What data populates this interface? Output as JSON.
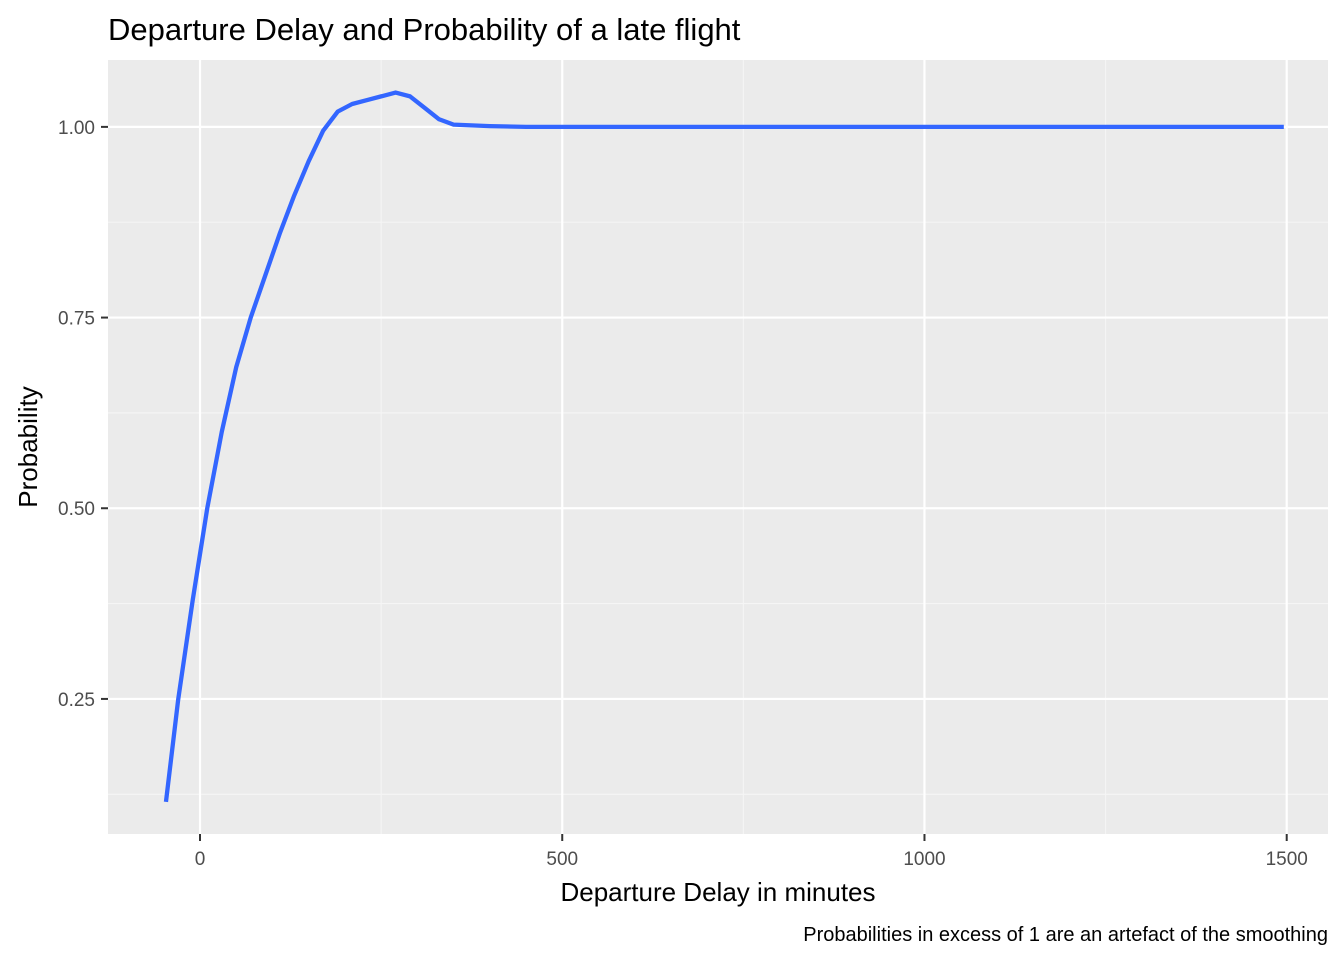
{
  "chart_data": {
    "type": "line",
    "title": "Departure Delay and Probability of a late flight",
    "xlabel": "Departure Delay in minutes",
    "ylabel": "Probability",
    "caption": "Probabilities in excess of 1 are an artefact of the smoothing",
    "xlim": [
      -127,
      1557
    ],
    "ylim": [
      0.0729,
      1.0877
    ],
    "x_ticks": [
      0,
      500,
      1000,
      1500
    ],
    "x_tick_labels": [
      "0",
      "500",
      "1000",
      "1500"
    ],
    "y_ticks": [
      0.25,
      0.5,
      0.75,
      1.0
    ],
    "y_tick_labels": [
      "0.25",
      "0.50",
      "0.75",
      "1.00"
    ],
    "x_minor_ticks": [
      250,
      750,
      1250
    ],
    "y_minor_ticks": [
      0.125,
      0.375,
      0.625,
      0.875
    ],
    "grid": true,
    "legend": "none",
    "colors": {
      "panel_background": "#EBEBEB",
      "grid_major": "#FFFFFF",
      "grid_minor": "#F5F5F5",
      "line": "#3366FF",
      "tick_mark": "#333333"
    },
    "series": [
      {
        "x": [
          -47,
          -30,
          -10,
          0,
          10,
          30,
          50,
          70,
          90,
          110,
          130,
          150,
          170,
          190,
          210,
          230,
          250,
          270,
          290,
          310,
          330,
          350,
          400,
          450,
          500,
          600,
          700,
          800,
          900,
          1000,
          1100,
          1200,
          1300,
          1400,
          1496
        ],
        "values": [
          0.115,
          0.25,
          0.38,
          0.44,
          0.5,
          0.6,
          0.685,
          0.75,
          0.805,
          0.86,
          0.91,
          0.955,
          0.995,
          1.02,
          1.03,
          1.035,
          1.04,
          1.045,
          1.04,
          1.025,
          1.01,
          1.003,
          1.001,
          1.0,
          1.0,
          1.0,
          1.0,
          1.0,
          1.0,
          1.0,
          1.0,
          1.0,
          1.0,
          1.0,
          1.0
        ]
      }
    ]
  }
}
